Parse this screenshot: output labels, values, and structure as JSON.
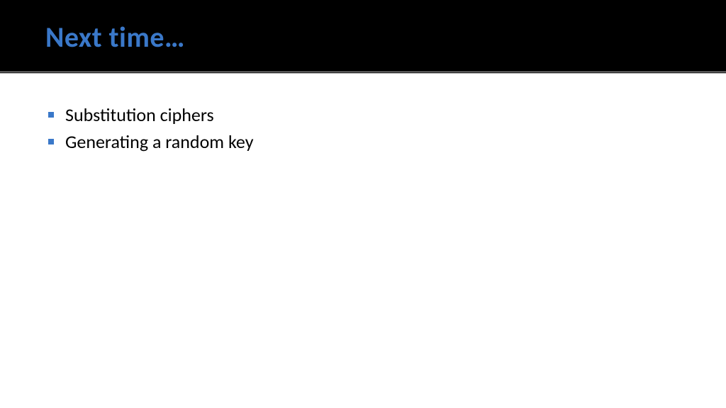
{
  "header": {
    "title": "Next time…",
    "title_color": "#3a78c9",
    "title_fontsize": 40,
    "background_color": "#000000",
    "divider_color": "#b0b0b0"
  },
  "content": {
    "bullets": [
      "Substitution ciphers",
      "Generating a random key"
    ],
    "bullet_marker_color": "#3a78c9",
    "text_color": "#000000",
    "text_fontsize": 26,
    "background_color": "#ffffff"
  }
}
